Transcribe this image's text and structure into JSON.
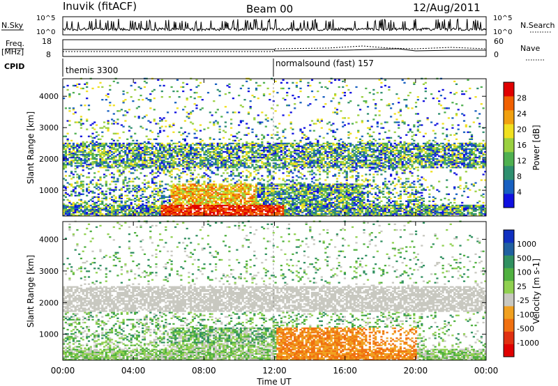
{
  "header": {
    "station": "Inuvik (fitACF)",
    "beam": "Beam 00",
    "date": "12/Aug/2011"
  },
  "top_panels": {
    "nsky_label": "N.Sky",
    "nsky_ticks": [
      "10^5",
      "10^0"
    ],
    "nsearch_label": "N.Search",
    "nsearch_ticks": [
      "10^5",
      "10^0"
    ],
    "freq_label": "Freq.",
    "freq_unit": "[MHz]",
    "freq_ticks": [
      "18",
      "8"
    ],
    "nave_label": "Nave",
    "nave_ticks": [
      "60",
      "0"
    ],
    "cpid_label": "CPID",
    "cpid_segments": [
      {
        "name": "themis 3300",
        "start_hour": 0
      },
      {
        "name": "normalsound (fast) 157",
        "start_hour": 12
      }
    ]
  },
  "chart_data": [
    {
      "type": "heatmap",
      "panel": "power",
      "title": "",
      "xlabel": "Time UT",
      "ylabel": "Slant Range [km]",
      "colorbar_label": "Power [dB]",
      "xlim": [
        0,
        24
      ],
      "ylim": [
        180,
        4560
      ],
      "x_ticks": [
        "00:00",
        "04:00",
        "08:00",
        "12:00",
        "16:00",
        "20:00",
        "00:00"
      ],
      "y_ticks": [
        1000,
        2000,
        3000,
        4000
      ],
      "colorbar_ticks": [
        "4",
        "8",
        "12",
        "16",
        "20",
        "24",
        "28"
      ],
      "colorbar_range": [
        0,
        30
      ],
      "colors": [
        "#1010e0",
        "#1860c0",
        "#2f8f6f",
        "#4fb050",
        "#9ad040",
        "#f0e020",
        "#f0a010",
        "#f06000",
        "#e00000"
      ]
    },
    {
      "type": "heatmap",
      "panel": "velocity",
      "title": "",
      "xlabel": "Time UT",
      "ylabel": "Slant Range [km]",
      "colorbar_label": "Velocity [m s-1]",
      "xlim": [
        0,
        24
      ],
      "ylim": [
        180,
        4560
      ],
      "x_ticks": [
        "00:00",
        "04:00",
        "08:00",
        "12:00",
        "16:00",
        "20:00",
        "00:00"
      ],
      "y_ticks": [
        1000,
        2000,
        3000,
        4000
      ],
      "colorbar_ticks": [
        "1000",
        "500",
        "100",
        "25",
        "-25",
        "-100",
        "-500",
        "-1000"
      ],
      "colors": [
        "#1030c0",
        "#2060a0",
        "#309060",
        "#50b040",
        "#90d050",
        "#c8c8c0",
        "#f0a020",
        "#f07010",
        "#e03010",
        "#e00000"
      ]
    }
  ],
  "x_axis": {
    "label": "Time UT",
    "ticks": [
      "00:00",
      "04:00",
      "08:00",
      "12:00",
      "16:00",
      "20:00",
      "00:00"
    ]
  }
}
